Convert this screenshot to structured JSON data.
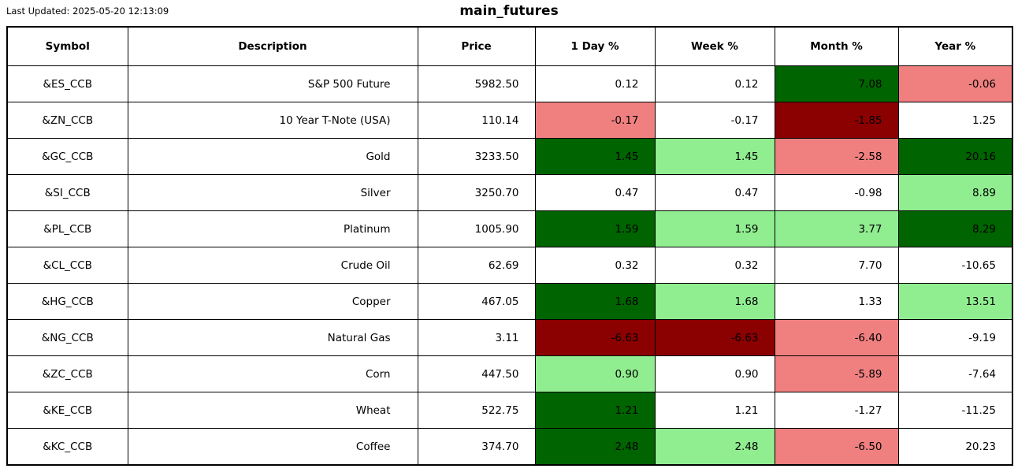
{
  "meta": {
    "last_updated": "Last Updated: 2025-05-20 12:13:09",
    "title": "main_futures"
  },
  "colors": {
    "white": "#FFFFFF",
    "dark_green": "#006400",
    "light_green": "#90EE90",
    "dark_red": "#8B0000",
    "light_red": "#F08080",
    "border": "#000000",
    "text": "#000000"
  },
  "chart_data": {
    "type": "table",
    "title": "main_futures",
    "last_updated": "Last Updated: 2025-05-20 12:13:09",
    "columns": [
      "Symbol",
      "Description",
      "Price",
      "1 Day %",
      "Week %",
      "Month %",
      "Year %"
    ],
    "rows": [
      {
        "symbol": "&ES_CCB",
        "description": "S&P 500 Future",
        "price": "5982.50",
        "day_pct": {
          "value": "0.12",
          "bg": "white"
        },
        "week_pct": {
          "value": "0.12",
          "bg": "white"
        },
        "month_pct": {
          "value": "7.08",
          "bg": "dark_green"
        },
        "year_pct": {
          "value": "-0.06",
          "bg": "light_red"
        }
      },
      {
        "symbol": "&ZN_CCB",
        "description": "10 Year T-Note (USA)",
        "price": "110.14",
        "day_pct": {
          "value": "-0.17",
          "bg": "light_red"
        },
        "week_pct": {
          "value": "-0.17",
          "bg": "white"
        },
        "month_pct": {
          "value": "-1.85",
          "bg": "dark_red"
        },
        "year_pct": {
          "value": "1.25",
          "bg": "white"
        }
      },
      {
        "symbol": "&GC_CCB",
        "description": "Gold",
        "price": "3233.50",
        "day_pct": {
          "value": "1.45",
          "bg": "dark_green"
        },
        "week_pct": {
          "value": "1.45",
          "bg": "light_green"
        },
        "month_pct": {
          "value": "-2.58",
          "bg": "light_red"
        },
        "year_pct": {
          "value": "20.16",
          "bg": "dark_green"
        }
      },
      {
        "symbol": "&SI_CCB",
        "description": "Silver",
        "price": "3250.70",
        "day_pct": {
          "value": "0.47",
          "bg": "white"
        },
        "week_pct": {
          "value": "0.47",
          "bg": "white"
        },
        "month_pct": {
          "value": "-0.98",
          "bg": "white"
        },
        "year_pct": {
          "value": "8.89",
          "bg": "light_green"
        }
      },
      {
        "symbol": "&PL_CCB",
        "description": "Platinum",
        "price": "1005.90",
        "day_pct": {
          "value": "1.59",
          "bg": "dark_green"
        },
        "week_pct": {
          "value": "1.59",
          "bg": "light_green"
        },
        "month_pct": {
          "value": "3.77",
          "bg": "light_green"
        },
        "year_pct": {
          "value": "8.29",
          "bg": "dark_green"
        }
      },
      {
        "symbol": "&CL_CCB",
        "description": "Crude Oil",
        "price": "62.69",
        "day_pct": {
          "value": "0.32",
          "bg": "white"
        },
        "week_pct": {
          "value": "0.32",
          "bg": "white"
        },
        "month_pct": {
          "value": "7.70",
          "bg": "white"
        },
        "year_pct": {
          "value": "-10.65",
          "bg": "white"
        }
      },
      {
        "symbol": "&HG_CCB",
        "description": "Copper",
        "price": "467.05",
        "day_pct": {
          "value": "1.68",
          "bg": "dark_green"
        },
        "week_pct": {
          "value": "1.68",
          "bg": "light_green"
        },
        "month_pct": {
          "value": "1.33",
          "bg": "white"
        },
        "year_pct": {
          "value": "13.51",
          "bg": "light_green"
        }
      },
      {
        "symbol": "&NG_CCB",
        "description": "Natural Gas",
        "price": "3.11",
        "day_pct": {
          "value": "-6.63",
          "bg": "dark_red"
        },
        "week_pct": {
          "value": "-6.63",
          "bg": "dark_red"
        },
        "month_pct": {
          "value": "-6.40",
          "bg": "light_red"
        },
        "year_pct": {
          "value": "-9.19",
          "bg": "white"
        }
      },
      {
        "symbol": "&ZC_CCB",
        "description": "Corn",
        "price": "447.50",
        "day_pct": {
          "value": "0.90",
          "bg": "light_green"
        },
        "week_pct": {
          "value": "0.90",
          "bg": "white"
        },
        "month_pct": {
          "value": "-5.89",
          "bg": "light_red"
        },
        "year_pct": {
          "value": "-7.64",
          "bg": "white"
        }
      },
      {
        "symbol": "&KE_CCB",
        "description": "Wheat",
        "price": "522.75",
        "day_pct": {
          "value": "1.21",
          "bg": "dark_green"
        },
        "week_pct": {
          "value": "1.21",
          "bg": "white"
        },
        "month_pct": {
          "value": "-1.27",
          "bg": "white"
        },
        "year_pct": {
          "value": "-11.25",
          "bg": "white"
        }
      },
      {
        "symbol": "&KC_CCB",
        "description": "Coffee",
        "price": "374.70",
        "day_pct": {
          "value": "2.48",
          "bg": "dark_green"
        },
        "week_pct": {
          "value": "2.48",
          "bg": "light_green"
        },
        "month_pct": {
          "value": "-6.50",
          "bg": "light_red"
        },
        "year_pct": {
          "value": "20.23",
          "bg": "white"
        }
      }
    ]
  }
}
